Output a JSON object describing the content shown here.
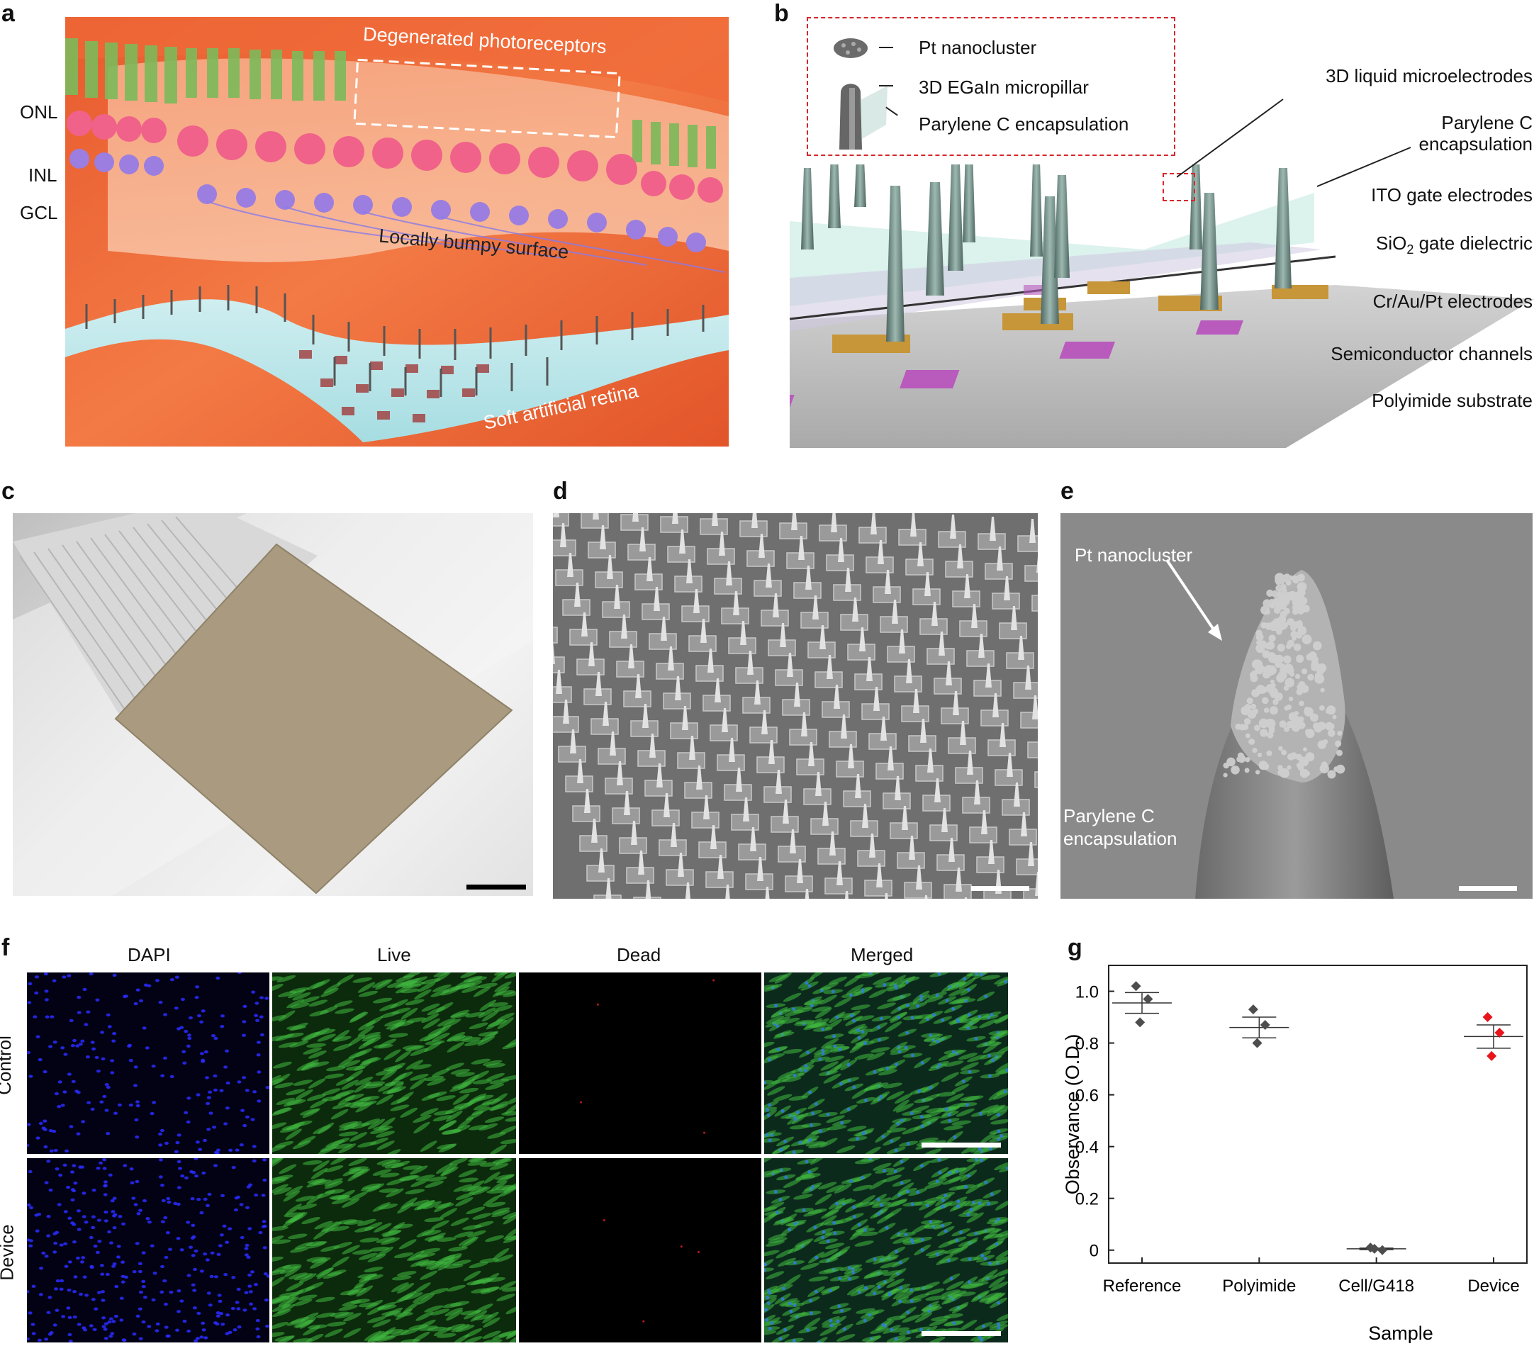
{
  "panel_labels": {
    "a": "a",
    "b": "b",
    "c": "c",
    "d": "d",
    "e": "e",
    "f": "f",
    "g": "g"
  },
  "panel_a": {
    "layers": [
      "ONL",
      "INL",
      "GCL"
    ],
    "degenerated": "Degenerated photoreceptors",
    "bumpy": "Locally bumpy surface",
    "retina": "Soft artificial retina"
  },
  "panel_b": {
    "inset": [
      "Pt nanocluster",
      "3D EGaIn micropillar",
      "Parylene C encapsulation"
    ],
    "layers": {
      "microelectrodes": "3D liquid microelectrodes",
      "parylene_1": "Parylene C",
      "parylene_2": "encapsulation",
      "ito": "ITO gate electrodes",
      "sio2_pre": "SiO",
      "sio2_sub": "2",
      "sio2_post": " gate dielectric",
      "crau": "Cr/Au/Pt electrodes",
      "semi": "Semiconductor channels",
      "polyimide": "Polyimide substrate"
    }
  },
  "panel_e": {
    "arrow_label": "Pt nanocluster",
    "enc_1": "Parylene C",
    "enc_2": "encapsulation"
  },
  "panel_f": {
    "columns": [
      "DAPI",
      "Live",
      "Dead",
      "Merged"
    ],
    "rows": [
      "Control",
      "Device"
    ]
  },
  "chart_data": {
    "type": "scatter",
    "categories": [
      "Reference",
      "Polyimide",
      "Cell/G418",
      "Device"
    ],
    "xlabel": "Sample",
    "ylabel": "Observance (O.D.)",
    "ylim": [
      -0.05,
      1.1
    ],
    "yticks": [
      "0",
      "0.2",
      "0.4",
      "0.6",
      "0.8",
      "1.0"
    ],
    "ytick_values": [
      0,
      0.2,
      0.4,
      0.6,
      0.8,
      1.0
    ],
    "series": [
      {
        "points": [
          1.02,
          0.97,
          0.88
        ],
        "mean": 0.955,
        "err": 0.04,
        "color": "#4d4d4d"
      },
      {
        "points": [
          0.93,
          0.87,
          0.8
        ],
        "mean": 0.86,
        "err": 0.04,
        "color": "#4d4d4d"
      },
      {
        "points": [
          0.01,
          0.0,
          0.005
        ],
        "mean": 0.005,
        "err": 0.003,
        "color": "#4d4d4d"
      },
      {
        "points": [
          0.9,
          0.84,
          0.75
        ],
        "mean": 0.825,
        "err": 0.045,
        "color": "#e8151b"
      }
    ]
  },
  "colors": {
    "marker": "#4d4d4d",
    "device_marker": "#e8151b",
    "inset_border": "#d7262b"
  }
}
